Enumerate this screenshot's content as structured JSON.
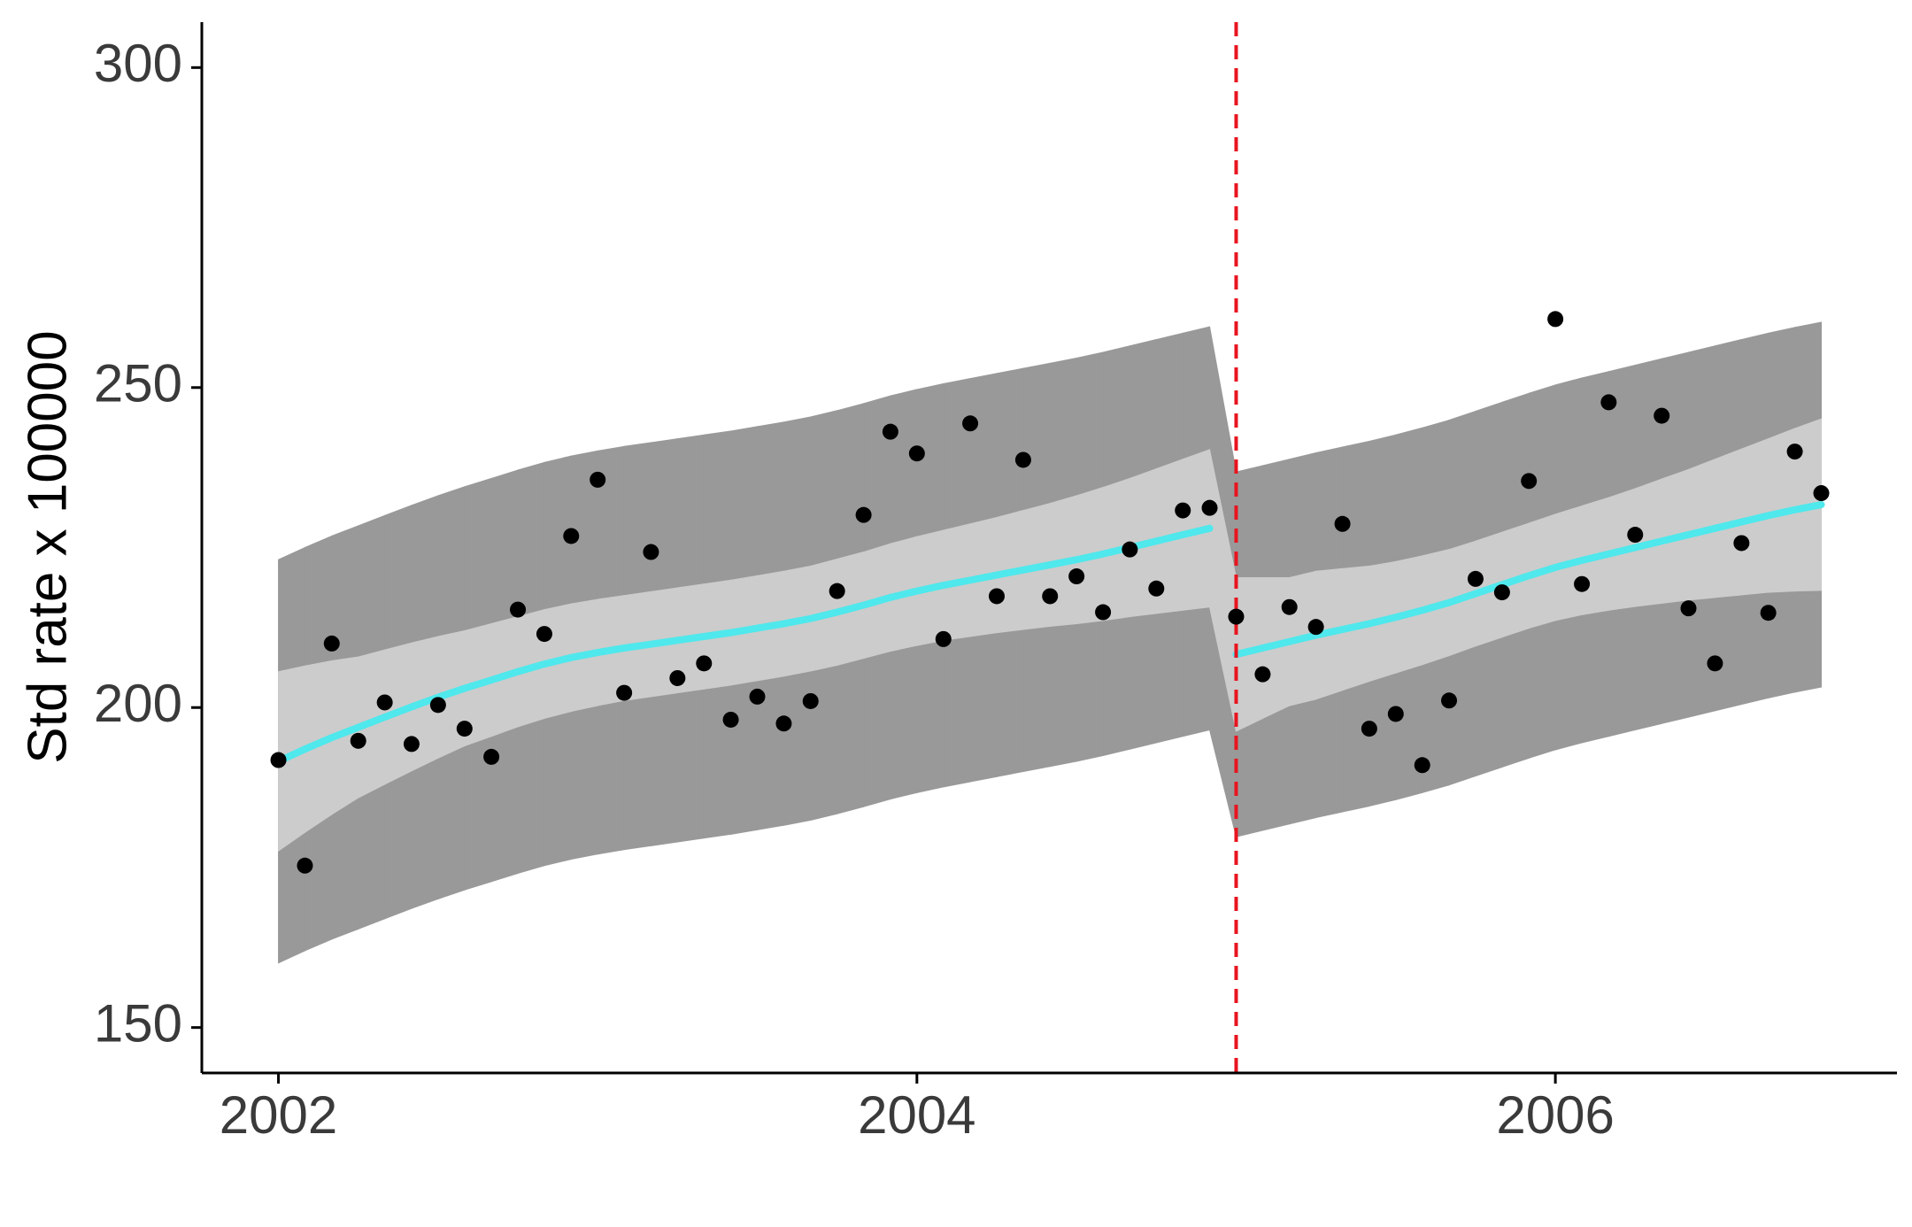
{
  "chart_data": {
    "type": "interrupted-series",
    "ylabel": "Std rate x 100000",
    "x": [
      2002,
      2002.083,
      2002.167,
      2002.25,
      2002.333,
      2002.417,
      2002.5,
      2002.583,
      2002.667,
      2002.75,
      2002.833,
      2002.917,
      2003,
      2003.083,
      2003.167,
      2003.25,
      2003.333,
      2003.417,
      2003.5,
      2003.583,
      2003.667,
      2003.75,
      2003.833,
      2003.917,
      2004,
      2004.083,
      2004.167,
      2004.25,
      2004.333,
      2004.417,
      2004.5,
      2004.583,
      2004.667,
      2004.75,
      2004.833,
      2004.917,
      2005,
      2005.083,
      2005.167,
      2005.25,
      2005.333,
      2005.417,
      2005.5,
      2005.583,
      2005.667,
      2005.75,
      2005.833,
      2005.917,
      2006,
      2006.083,
      2006.167,
      2006.25,
      2006.333,
      2006.417,
      2006.5,
      2006.583,
      2006.667,
      2006.75,
      2006.833
    ],
    "values": [
      191.8,
      175.3,
      210.0,
      194.8,
      200.8,
      194.3,
      200.4,
      196.7,
      192.3,
      215.3,
      211.5,
      226.8,
      235.6,
      202.3,
      224.3,
      204.6,
      206.9,
      198.1,
      201.7,
      197.5,
      201.0,
      218.2,
      230.1,
      243.1,
      239.7,
      210.7,
      244.4,
      217.4,
      238.7,
      217.4,
      220.5,
      214.9,
      224.7,
      218.6,
      230.8,
      231.2,
      214.2,
      205.2,
      215.7,
      212.6,
      228.7,
      196.7,
      199.0,
      191.0,
      201.1,
      220.1,
      218.0,
      235.4,
      260.7,
      219.3,
      247.7,
      227.0,
      245.6,
      215.5,
      206.9,
      225.7,
      214.8,
      240.0,
      233.5
    ],
    "fit": [
      191.6,
      193.5,
      195.3,
      196.9,
      198.5,
      200.1,
      201.6,
      203.0,
      204.3,
      205.6,
      206.8,
      207.8,
      208.6,
      209.3,
      209.9,
      210.5,
      211.1,
      211.7,
      212.4,
      213.1,
      213.9,
      214.9,
      216.0,
      217.2,
      218.2,
      219.1,
      219.9,
      220.7,
      221.5,
      222.3,
      223.1,
      224.0,
      225.0,
      226.0,
      227.0,
      228.0,
      208.3,
      209.3,
      210.3,
      211.3,
      212.2,
      213.1,
      214.1,
      215.2,
      216.4,
      217.8,
      219.2,
      220.6,
      221.9,
      223.0,
      224.0,
      225.0,
      226.0,
      227.0,
      228.0,
      229.0,
      230.0,
      230.9,
      231.7
    ],
    "ci_lower": [
      177.6,
      180.5,
      183.3,
      185.9,
      188.0,
      190.1,
      192.1,
      194.0,
      195.5,
      197.0,
      198.3,
      199.4,
      200.3,
      201.1,
      201.7,
      202.3,
      202.9,
      203.5,
      204.2,
      204.9,
      205.7,
      206.6,
      207.7,
      208.8,
      209.7,
      210.5,
      211.1,
      211.7,
      212.2,
      212.7,
      213.1,
      213.6,
      214.2,
      214.7,
      215.2,
      215.7,
      196.3,
      198.3,
      200.3,
      201.3,
      202.7,
      204.1,
      205.4,
      206.7,
      208.1,
      209.6,
      211.0,
      212.4,
      213.6,
      214.5,
      215.2,
      215.8,
      216.3,
      216.8,
      217.2,
      217.6,
      218.0,
      218.2,
      218.3
    ],
    "ci_upper": [
      205.6,
      206.5,
      207.3,
      207.9,
      209.0,
      210.1,
      211.1,
      212.0,
      213.1,
      214.2,
      215.3,
      216.2,
      216.9,
      217.5,
      218.1,
      218.7,
      219.3,
      219.9,
      220.6,
      221.3,
      222.1,
      223.2,
      224.3,
      225.6,
      226.7,
      227.7,
      228.7,
      229.7,
      230.8,
      231.9,
      233.1,
      234.4,
      235.8,
      237.3,
      238.8,
      240.3,
      220.3,
      220.3,
      220.3,
      221.3,
      221.7,
      222.1,
      222.8,
      223.7,
      224.7,
      226.0,
      227.4,
      228.8,
      230.2,
      231.5,
      232.8,
      234.2,
      235.7,
      237.2,
      238.8,
      240.4,
      242.0,
      243.6,
      245.1
    ],
    "pi_lower": [
      160.1,
      162.0,
      163.8,
      165.4,
      167.0,
      168.6,
      170.1,
      171.5,
      172.8,
      174.1,
      175.3,
      176.3,
      177.1,
      177.8,
      178.4,
      179.0,
      179.6,
      180.2,
      180.9,
      181.6,
      182.4,
      183.4,
      184.5,
      185.7,
      186.7,
      187.6,
      188.4,
      189.2,
      190.0,
      190.8,
      191.6,
      192.5,
      193.5,
      194.5,
      195.5,
      196.5,
      179.8,
      180.8,
      181.8,
      182.8,
      183.7,
      184.6,
      185.6,
      186.7,
      187.9,
      189.3,
      190.7,
      192.1,
      193.4,
      194.5,
      195.5,
      196.5,
      197.5,
      198.5,
      199.5,
      200.5,
      201.5,
      202.4,
      203.2
    ],
    "pi_upper": [
      223.1,
      225.0,
      226.8,
      228.4,
      230.0,
      231.6,
      233.1,
      234.5,
      235.8,
      237.1,
      238.3,
      239.3,
      240.1,
      240.8,
      241.4,
      242.0,
      242.6,
      243.2,
      243.9,
      244.6,
      245.4,
      246.4,
      247.5,
      248.7,
      249.7,
      250.6,
      251.4,
      252.2,
      253.0,
      253.8,
      254.6,
      255.5,
      256.5,
      257.5,
      258.5,
      259.5,
      236.8,
      237.8,
      238.8,
      239.8,
      240.7,
      241.6,
      242.6,
      243.7,
      244.9,
      246.3,
      247.7,
      249.1,
      250.4,
      251.5,
      252.5,
      253.5,
      254.5,
      255.5,
      256.5,
      257.5,
      258.5,
      259.4,
      260.2
    ],
    "intervention": 2005,
    "xlim": [
      2001.76,
      2007.07
    ],
    "xticks": [
      2002,
      2004,
      2006
    ],
    "ylim": [
      142.9,
      307.1
    ],
    "yticks": [
      150,
      200,
      250,
      300
    ],
    "point_color": "#000000",
    "fit_color": "#4fe8ec",
    "ci_color": "#cccccc",
    "pi_color": "#999999",
    "intervention_color": "#e8141e"
  }
}
